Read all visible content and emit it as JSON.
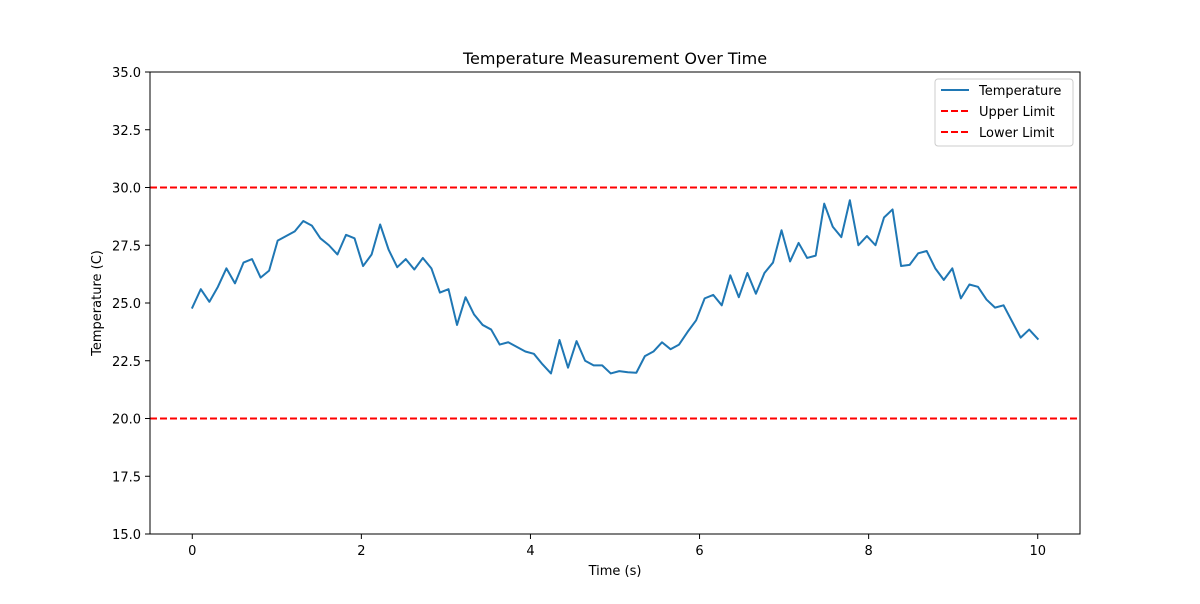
{
  "chart_data": {
    "type": "line",
    "title": "Temperature Measurement Over Time",
    "xlabel": "Time (s)",
    "ylabel": "Temperature (C)",
    "xlim": [
      -0.5,
      10.5
    ],
    "ylim": [
      15.0,
      35.0
    ],
    "x_ticks": [
      0,
      2,
      4,
      6,
      8,
      10
    ],
    "x_tick_labels": [
      "0",
      "2",
      "4",
      "6",
      "8",
      "10"
    ],
    "y_ticks": [
      15.0,
      17.5,
      20.0,
      22.5,
      25.0,
      27.5,
      30.0,
      32.5,
      35.0
    ],
    "y_tick_labels": [
      "15.0",
      "17.5",
      "20.0",
      "22.5",
      "25.0",
      "27.5",
      "30.0",
      "32.5",
      "35.0"
    ],
    "grid": false,
    "legend_position": "upper right",
    "series": [
      {
        "name": "Temperature",
        "color": "#1f77b4",
        "style": "solid",
        "x_range": [
          0,
          10
        ],
        "values": [
          24.8,
          25.6,
          25.05,
          25.7,
          26.5,
          25.85,
          26.75,
          26.9,
          26.1,
          26.4,
          27.7,
          27.9,
          28.1,
          28.55,
          28.35,
          27.8,
          27.5,
          27.1,
          27.95,
          27.8,
          26.6,
          27.1,
          28.4,
          27.3,
          26.55,
          26.9,
          26.45,
          26.95,
          26.5,
          25.45,
          25.6,
          24.05,
          25.25,
          24.5,
          24.05,
          23.85,
          23.2,
          23.3,
          23.1,
          22.9,
          22.8,
          22.35,
          21.95,
          23.4,
          22.2,
          23.35,
          22.5,
          22.3,
          22.3,
          21.95,
          22.05,
          22.0,
          21.98,
          22.7,
          22.9,
          23.3,
          23.0,
          23.2,
          23.75,
          24.25,
          25.2,
          25.35,
          24.9,
          26.2,
          25.25,
          26.3,
          25.4,
          26.3,
          26.75,
          28.15,
          26.8,
          27.6,
          26.95,
          27.05,
          29.3,
          28.3,
          27.85,
          29.45,
          27.5,
          27.9,
          27.5,
          28.7,
          29.05,
          26.6,
          26.65,
          27.15,
          27.25,
          26.5,
          26.0,
          26.5,
          25.2,
          25.8,
          25.7,
          25.15,
          24.8,
          24.9,
          24.2,
          23.5,
          23.85,
          23.45
        ]
      },
      {
        "name": "Upper Limit",
        "color": "#ff0000",
        "style": "dashed",
        "constant": 30.0
      },
      {
        "name": "Lower Limit",
        "color": "#ff0000",
        "style": "dashed",
        "constant": 20.0
      }
    ]
  }
}
